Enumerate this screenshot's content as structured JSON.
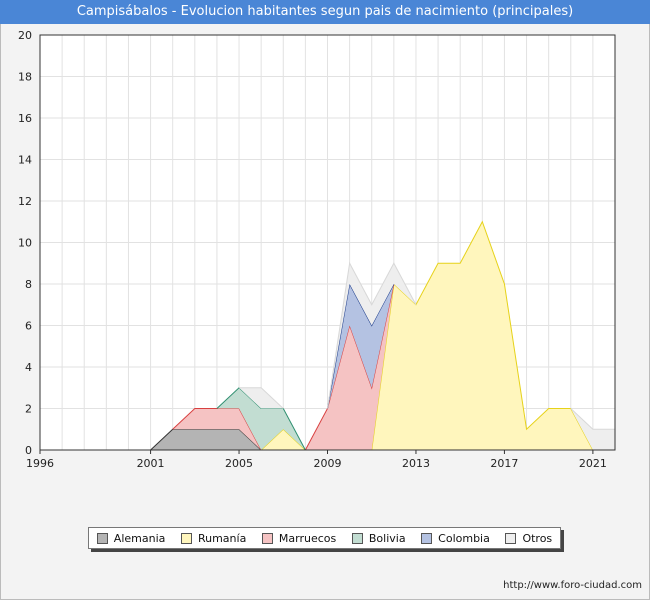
{
  "title": "Campisábalos - Evolucion habitantes segun pais de nacimiento (principales)",
  "footer_text": "http://www.foro-ciudad.com",
  "chart_data": {
    "type": "area",
    "stacked": true,
    "x": [
      2001,
      2002,
      2003,
      2004,
      2005,
      2006,
      2007,
      2008,
      2009,
      2010,
      2011,
      2012,
      2013,
      2014,
      2015,
      2016,
      2017,
      2018,
      2019,
      2020,
      2021,
      2022
    ],
    "xticks": [
      "1996",
      "2001",
      "2005",
      "2009",
      "2013",
      "2017",
      "2021"
    ],
    "xlim": [
      1996,
      2022
    ],
    "ylim": [
      0,
      20
    ],
    "yticks": [
      "0",
      "2",
      "4",
      "6",
      "8",
      "10",
      "12",
      "14",
      "16",
      "18",
      "20"
    ],
    "grid": true,
    "legend_position": "bottom",
    "series": [
      {
        "name": "Alemania",
        "fill": "#b4b4b4",
        "stroke": "#333333",
        "values": [
          0,
          1,
          1,
          1,
          1,
          0,
          0,
          0,
          0,
          0,
          0,
          0,
          0,
          0,
          0,
          0,
          0,
          0,
          0,
          0,
          0,
          0
        ]
      },
      {
        "name": "Rumanía",
        "fill": "#fff6bd",
        "stroke": "#e6d21a",
        "values": [
          0,
          0,
          0,
          0,
          0,
          0,
          1,
          0,
          0,
          0,
          0,
          8,
          7,
          9,
          9,
          11,
          8,
          1,
          2,
          2,
          0,
          0
        ]
      },
      {
        "name": "Marruecos",
        "fill": "#f5c3c3",
        "stroke": "#d84040",
        "values": [
          0,
          0,
          1,
          1,
          1,
          0,
          0,
          0,
          2,
          6,
          3,
          0,
          0,
          0,
          0,
          0,
          0,
          0,
          0,
          0,
          0,
          0
        ]
      },
      {
        "name": "Bolivia",
        "fill": "#c2ddd2",
        "stroke": "#2f8f70",
        "values": [
          0,
          0,
          0,
          0,
          1,
          2,
          1,
          0,
          0,
          0,
          0,
          0,
          0,
          0,
          0,
          0,
          0,
          0,
          0,
          0,
          0,
          0
        ]
      },
      {
        "name": "Colombia",
        "fill": "#b4c2e2",
        "stroke": "#1a3a8a",
        "values": [
          0,
          0,
          0,
          0,
          0,
          0,
          0,
          0,
          0,
          2,
          3,
          0,
          0,
          0,
          0,
          0,
          0,
          0,
          0,
          0,
          0,
          0
        ]
      },
      {
        "name": "Otros",
        "fill": "#eeeeee",
        "stroke": "#d8d8d8",
        "values": [
          0,
          0,
          0,
          0,
          0,
          1,
          0,
          0,
          0,
          1,
          1,
          1,
          0,
          0,
          0,
          0,
          0,
          0,
          0,
          0,
          1,
          1
        ]
      }
    ]
  }
}
